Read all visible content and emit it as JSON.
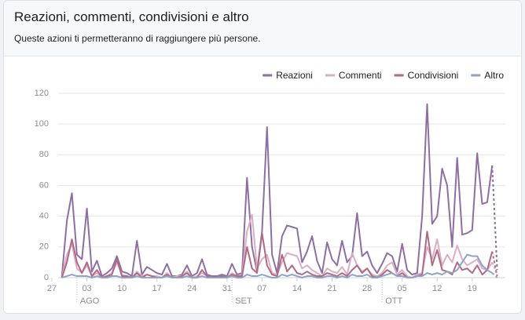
{
  "header": {
    "title": "Reazioni, commenti, condivisioni e altro",
    "subtitle": "Queste azioni ti permetteranno di raggiungere più persone."
  },
  "chart_data": {
    "type": "line",
    "x": [
      2,
      3,
      4,
      5,
      6,
      7,
      8,
      9,
      10,
      11,
      12,
      13,
      14,
      15,
      16,
      17,
      18,
      19,
      20,
      21,
      22,
      23,
      24,
      25,
      26,
      27,
      28,
      29,
      30,
      31,
      32,
      33,
      34,
      35,
      36,
      37,
      38,
      39,
      40,
      41,
      42,
      43,
      44,
      45,
      46,
      47,
      48,
      49,
      50,
      51,
      52,
      53,
      54,
      55,
      56,
      57,
      58,
      59,
      60,
      61,
      62,
      63,
      64,
      65,
      66,
      67,
      68,
      69,
      70,
      71,
      72,
      73,
      74,
      75,
      76,
      77,
      78,
      79,
      80,
      81,
      82,
      83,
      84,
      85,
      86,
      87,
      88,
      89
    ],
    "series": [
      {
        "name": "Reazioni",
        "color": "#8e6fa3",
        "values": [
          1,
          37,
          55,
          15,
          12,
          45,
          4,
          11,
          1,
          3,
          6,
          14,
          4,
          3,
          1,
          24,
          2,
          7,
          5,
          3,
          2,
          9,
          1,
          1,
          2,
          8,
          1,
          3,
          12,
          2,
          1,
          1,
          2,
          1,
          9,
          2,
          3,
          65,
          20,
          4,
          30,
          98,
          15,
          3,
          27,
          34,
          33,
          32,
          10,
          17,
          27,
          11,
          3,
          23,
          12,
          8,
          24,
          10,
          14,
          42,
          14,
          17,
          8,
          3,
          9,
          16,
          14,
          4,
          22,
          5,
          2,
          3,
          40,
          113,
          35,
          40,
          71,
          60,
          20,
          78,
          28,
          29,
          31,
          81,
          48,
          49,
          73,
          5
        ]
      },
      {
        "name": "Commenti",
        "color": "#dcaec4",
        "values": [
          0,
          15,
          22,
          6,
          3,
          8,
          1,
          3,
          0,
          1,
          3,
          10,
          2,
          1,
          0,
          4,
          1,
          2,
          1,
          1,
          0,
          3,
          0,
          1,
          1,
          4,
          0,
          1,
          3,
          1,
          0,
          0,
          1,
          0,
          3,
          1,
          2,
          30,
          41,
          6,
          12,
          15,
          3,
          2,
          10,
          16,
          15,
          14,
          6,
          8,
          5,
          3,
          1,
          6,
          4,
          3,
          7,
          2,
          16,
          8,
          4,
          6,
          2,
          1,
          3,
          8,
          10,
          2,
          5,
          1,
          0,
          2,
          3,
          20,
          12,
          25,
          8,
          15,
          10,
          21,
          12,
          8,
          10,
          12,
          6,
          5,
          10,
          2
        ]
      },
      {
        "name": "Condivisioni",
        "color": "#b06a85",
        "values": [
          0,
          10,
          25,
          10,
          3,
          10,
          1,
          5,
          0,
          1,
          2,
          12,
          1,
          1,
          0,
          3,
          0,
          2,
          1,
          0,
          0,
          2,
          0,
          0,
          1,
          3,
          0,
          0,
          5,
          1,
          0,
          0,
          1,
          0,
          2,
          1,
          1,
          20,
          6,
          3,
          29,
          8,
          2,
          1,
          15,
          4,
          8,
          3,
          2,
          4,
          2,
          1,
          1,
          3,
          2,
          1,
          3,
          1,
          5,
          8,
          3,
          6,
          1,
          0,
          2,
          5,
          3,
          1,
          3,
          0,
          0,
          1,
          2,
          30,
          8,
          18,
          5,
          4,
          2,
          10,
          5,
          6,
          3,
          8,
          2,
          5,
          17,
          1
        ]
      },
      {
        "name": "Altro",
        "color": "#8fa3c8",
        "values": [
          0,
          1,
          2,
          1,
          1,
          1,
          0,
          1,
          0,
          0,
          1,
          1,
          0,
          0,
          0,
          1,
          0,
          0,
          0,
          0,
          0,
          1,
          0,
          0,
          0,
          1,
          0,
          0,
          1,
          0,
          0,
          0,
          0,
          0,
          1,
          0,
          0,
          2,
          1,
          1,
          2,
          1,
          0,
          0,
          2,
          1,
          2,
          1,
          0,
          1,
          1,
          0,
          0,
          1,
          1,
          0,
          1,
          0,
          2,
          1,
          1,
          2,
          0,
          0,
          1,
          2,
          3,
          1,
          1,
          0,
          0,
          1,
          1,
          3,
          2,
          3,
          2,
          4,
          3,
          5,
          10,
          15,
          14,
          14,
          8,
          5,
          3,
          0
        ]
      }
    ],
    "xlim": [
      0,
      90
    ],
    "xticks": [
      {
        "value": 0,
        "label": "27"
      },
      {
        "value": 7,
        "label": "03"
      },
      {
        "value": 14,
        "label": "10"
      },
      {
        "value": 21,
        "label": "17"
      },
      {
        "value": 28,
        "label": "24"
      },
      {
        "value": 35,
        "label": "31"
      },
      {
        "value": 42,
        "label": "07"
      },
      {
        "value": 49,
        "label": "14"
      },
      {
        "value": 56,
        "label": "21"
      },
      {
        "value": 63,
        "label": "28"
      },
      {
        "value": 70,
        "label": "05"
      },
      {
        "value": 77,
        "label": "12"
      },
      {
        "value": 84,
        "label": "19"
      }
    ],
    "month_markers": [
      {
        "value": 5,
        "label": "AGO"
      },
      {
        "value": 36,
        "label": "SET"
      },
      {
        "value": 66,
        "label": "OTT"
      }
    ],
    "ylim": [
      0,
      120
    ],
    "yticks": [
      0,
      20,
      40,
      60,
      80,
      100,
      120
    ],
    "grid": true,
    "legend": "top-right",
    "last_segment_dashed": true
  }
}
